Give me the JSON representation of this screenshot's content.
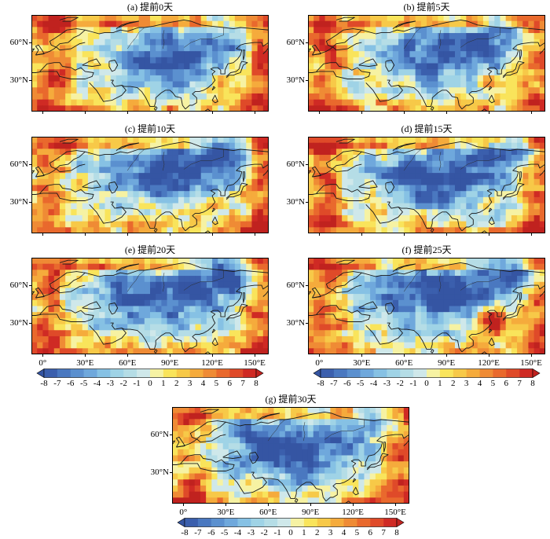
{
  "map_data": {
    "panels": [
      {
        "title": "(a) 提前0天",
        "variant": 0
      },
      {
        "title": "(b) 提前5天",
        "variant": 1
      },
      {
        "title": "(c) 提前10天",
        "variant": 2
      },
      {
        "title": "(d) 提前15天",
        "variant": 3
      },
      {
        "title": "(e) 提前20天",
        "variant": 4
      },
      {
        "title": "(f) 提前25天",
        "variant": 5
      },
      {
        "title": "(g) 提前30天",
        "variant": 6
      }
    ],
    "lat_labels": [
      "60°N",
      "30°N"
    ],
    "lon_labels": [
      "0°",
      "30°E",
      "60°E",
      "90°E",
      "120°E",
      "150°E"
    ],
    "colorbar": {
      "ticks": [
        "-8",
        "-7",
        "-6",
        "-5",
        "-4",
        "-3",
        "-2",
        "-1",
        "0",
        "1",
        "2",
        "3",
        "4",
        "5",
        "6",
        "7",
        "8"
      ],
      "colors": [
        "#3b5fad",
        "#4a78c0",
        "#5b90cf",
        "#6fa8dc",
        "#86c1e4",
        "#9fd3e6",
        "#b5dde6",
        "#cfe8ea",
        "#f6f2a3",
        "#f9e45b",
        "#f7c948",
        "#f5ab3c",
        "#ef8b35",
        "#e9692d",
        "#df4a29",
        "#cf2a24"
      ],
      "under_color": "#3555a3",
      "over_color": "#c0221f"
    }
  }
}
